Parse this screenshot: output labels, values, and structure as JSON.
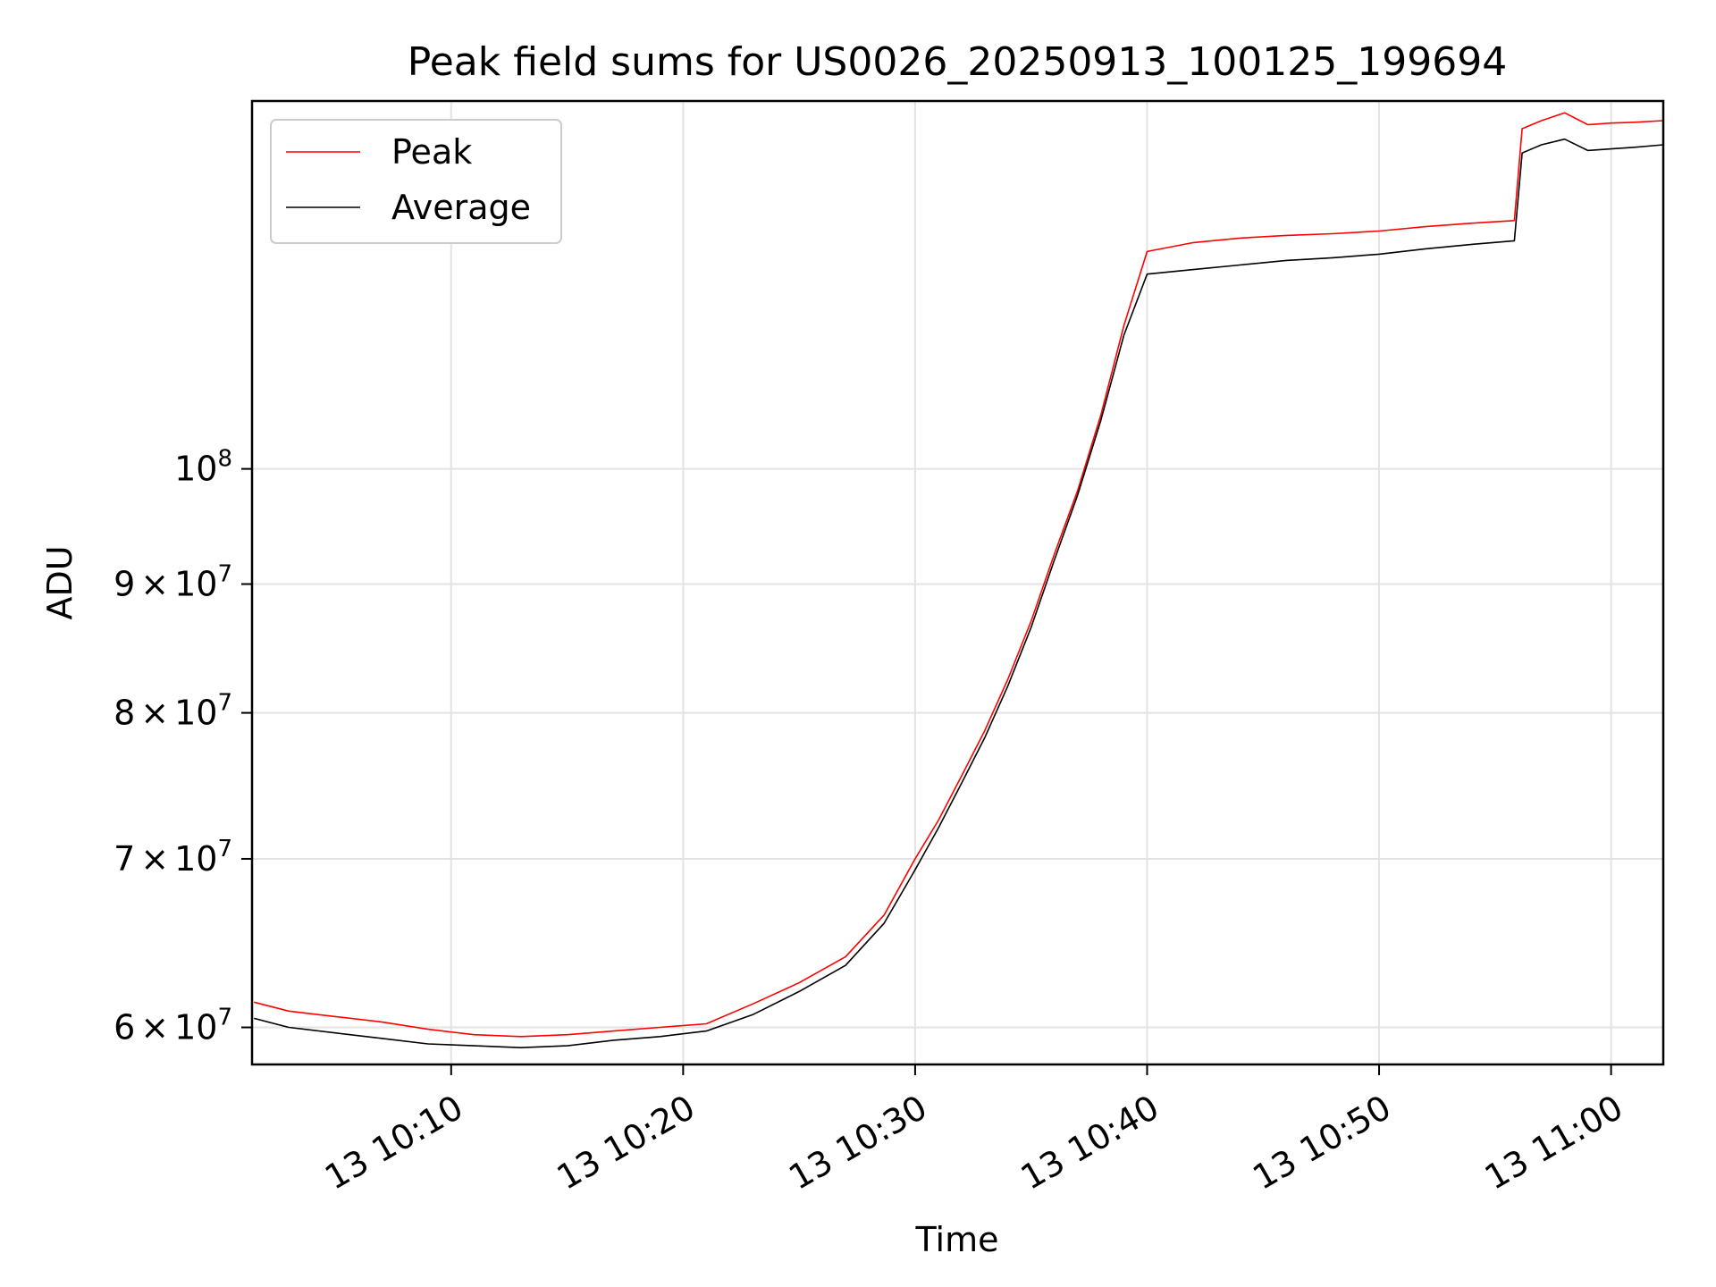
{
  "chart_data": {
    "type": "line",
    "title": "Peak field sums for US0026_20250913_100125_199694",
    "xlabel": "Time",
    "ylabel": "ADU",
    "x_axis": {
      "ticks": [
        "2025-09-13T10:10",
        "2025-09-13T10:20",
        "2025-09-13T10:30",
        "2025-09-13T10:40",
        "2025-09-13T10:50",
        "2025-09-13T11:00"
      ],
      "tick_labels": [
        "13 10:10",
        "13 10:20",
        "13 10:30",
        "13 10:40",
        "13 10:50",
        "13 11:00"
      ],
      "range": [
        "2025-09-13T10:01:25",
        "2025-09-13T11:02:15"
      ]
    },
    "y_axis": {
      "scale": "log",
      "range": [
        58000000,
        140000000
      ],
      "ticks": [
        60000000,
        70000000,
        80000000,
        90000000,
        100000000
      ],
      "tick_labels": [
        {
          "mant": "6",
          "exp": "7"
        },
        {
          "mant": "7",
          "exp": "7"
        },
        {
          "mant": "8",
          "exp": "7"
        },
        {
          "mant": "9",
          "exp": "7"
        },
        {
          "mant": "",
          "exp": "8"
        }
      ]
    },
    "grid": true,
    "legend_position": "top-left",
    "x": [
      "10:01:30",
      "10:03:00",
      "10:05:00",
      "10:07:00",
      "10:09:00",
      "10:11:00",
      "10:13:00",
      "10:15:00",
      "10:17:00",
      "10:19:00",
      "10:21:00",
      "10:23:00",
      "10:25:00",
      "10:27:00",
      "10:28:40",
      "10:30:00",
      "10:31:00",
      "10:32:00",
      "10:33:00",
      "10:34:00",
      "10:35:00",
      "10:36:00",
      "10:37:00",
      "10:38:00",
      "10:39:00",
      "10:40:00",
      "10:42:00",
      "10:44:00",
      "10:46:00",
      "10:48:00",
      "10:50:00",
      "10:52:00",
      "10:54:00",
      "10:55:50",
      "10:56:10",
      "10:57:00",
      "10:58:00",
      "10:59:00",
      "11:00:00",
      "11:01:00",
      "11:02:15"
    ],
    "series": [
      {
        "name": "Peak",
        "color": "#ff0000",
        "values": [
          61400000,
          60900000,
          60600000,
          60300000,
          59900000,
          59600000,
          59500000,
          59600000,
          59800000,
          60000000,
          60200000,
          61300000,
          62500000,
          64000000,
          66500000,
          70000000,
          72500000,
          75500000,
          78700000,
          82500000,
          87000000,
          92500000,
          98000000,
          105000000,
          114000000,
          122000000,
          123000000,
          123500000,
          123800000,
          124000000,
          124300000,
          124800000,
          125200000,
          125500000,
          136500000,
          137500000,
          138500000,
          137000000,
          137200000,
          137300000,
          137500000
        ]
      },
      {
        "name": "Average",
        "color": "#000000",
        "values": [
          60500000,
          60000000,
          59700000,
          59400000,
          59100000,
          59000000,
          58900000,
          59000000,
          59300000,
          59500000,
          59800000,
          60700000,
          62000000,
          63500000,
          66000000,
          69300000,
          72000000,
          75000000,
          78200000,
          82000000,
          86500000,
          92000000,
          97600000,
          104500000,
          113000000,
          119500000,
          120000000,
          120500000,
          121000000,
          121300000,
          121700000,
          122300000,
          122800000,
          123200000,
          133500000,
          134500000,
          135200000,
          133800000,
          134000000,
          134200000,
          134500000
        ]
      }
    ]
  }
}
